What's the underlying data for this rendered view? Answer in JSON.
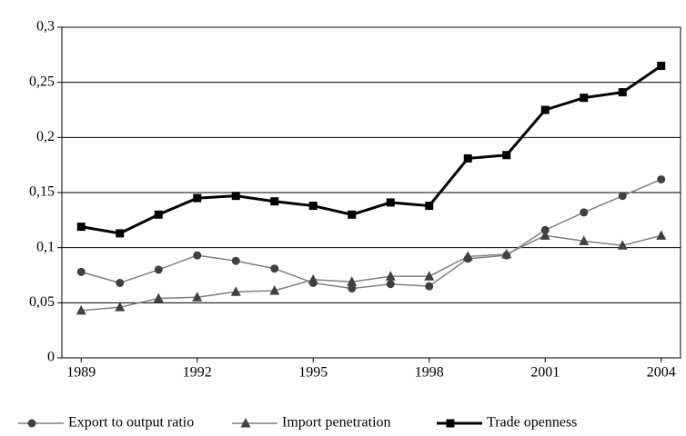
{
  "chart_data": {
    "type": "line",
    "x": [
      1989,
      1990,
      1991,
      1992,
      1993,
      1994,
      1995,
      1996,
      1997,
      1998,
      1999,
      2000,
      2001,
      2002,
      2003,
      2004
    ],
    "xlim": [
      1988.5,
      2004.5
    ],
    "xticks": [
      1989,
      1992,
      1995,
      1998,
      2001,
      2004
    ],
    "ylim": [
      0,
      0.3
    ],
    "yticks": [
      0,
      {
        "value": 0.05,
        "label": "0,05"
      },
      {
        "value": 0.1,
        "label": "0,1"
      },
      {
        "value": 0.15,
        "label": "0,15"
      },
      {
        "value": 0.2,
        "label": "0,2"
      },
      {
        "value": 0.25,
        "label": "0,25"
      },
      {
        "value": 0.3,
        "label": "0,3"
      }
    ],
    "grid": true,
    "legend": "bottom",
    "series": [
      {
        "name": "Export to output ratio",
        "color": "#808080",
        "marker": "circle",
        "values": [
          0.078,
          0.068,
          0.08,
          0.093,
          0.088,
          0.081,
          0.068,
          0.063,
          0.067,
          0.065,
          0.09,
          0.093,
          0.116,
          0.132,
          0.147,
          0.162
        ]
      },
      {
        "name": "Import penetration",
        "color": "#808080",
        "marker": "triangle",
        "values": [
          0.043,
          0.046,
          0.054,
          0.055,
          0.06,
          0.061,
          0.071,
          0.069,
          0.074,
          0.074,
          0.092,
          0.094,
          0.111,
          0.106,
          0.102,
          0.111
        ]
      },
      {
        "name": "Trade openness",
        "color": "#000000",
        "marker": "square",
        "values": [
          0.119,
          0.113,
          0.13,
          0.145,
          0.147,
          0.142,
          0.138,
          0.13,
          0.141,
          0.138,
          0.181,
          0.184,
          0.225,
          0.236,
          0.241,
          0.265
        ]
      }
    ]
  }
}
